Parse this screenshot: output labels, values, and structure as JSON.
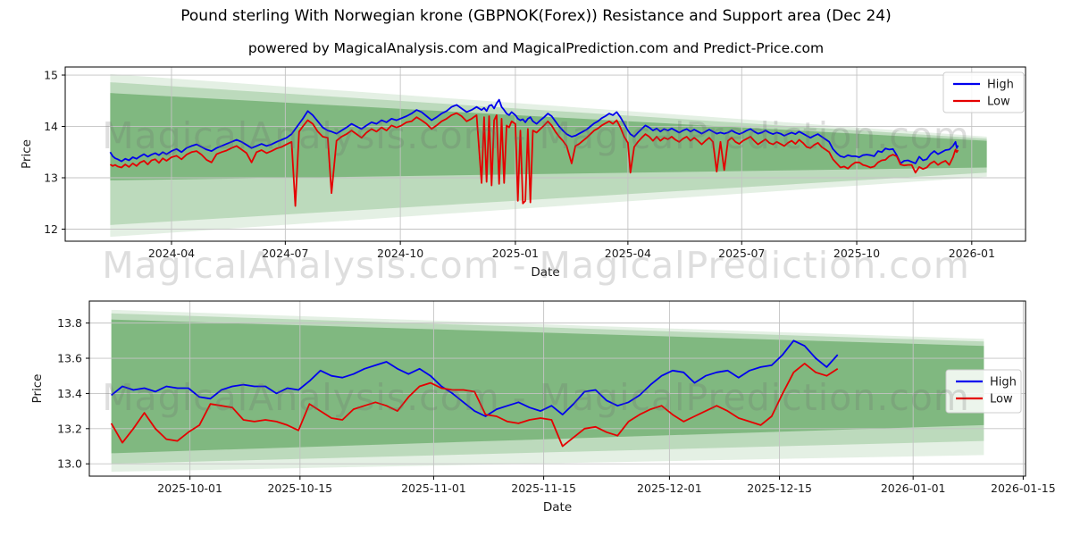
{
  "title": "Pound sterling With Norwegian krone (GBPNOK(Forex)) Resistance and Support area (Dec 24)",
  "subtitle": "powered by MagicalAnalysis.com and MagicalPrediction.com and Predict-Price.com",
  "watermark": {
    "text": "MagicalAnalysis.com - MagicalPrediction.com"
  },
  "colors": {
    "high": "#0000ee",
    "low": "#e50000",
    "band": "#2e8b2e",
    "grid": "#c3c3c3",
    "spine": "#000000",
    "text": "#1a1a1a"
  },
  "chart_data": [
    {
      "type": "line",
      "title": "",
      "xlabel": "Date",
      "ylabel": "Price",
      "x_unit": "days since 2024-01-01",
      "xlim": [
        6,
        774
      ],
      "ylim": [
        11.765,
        15.157
      ],
      "grid": true,
      "legend_position": "upper right",
      "x_ticks": [
        {
          "v": 91,
          "label": "2024-04"
        },
        {
          "v": 182,
          "label": "2024-07"
        },
        {
          "v": 274,
          "label": "2024-10"
        },
        {
          "v": 366,
          "label": "2025-01"
        },
        {
          "v": 456,
          "label": "2025-04"
        },
        {
          "v": 547,
          "label": "2025-07"
        },
        {
          "v": 639,
          "label": "2025-10"
        },
        {
          "v": 731,
          "label": "2026-01"
        }
      ],
      "y_ticks": [
        {
          "v": 12,
          "label": "12"
        },
        {
          "v": 13,
          "label": "13"
        },
        {
          "v": 14,
          "label": "14"
        },
        {
          "v": 15,
          "label": "15"
        }
      ],
      "bands": [
        {
          "x_start": 42,
          "x_end": 743,
          "top_start": 15.02,
          "top_end": 13.8,
          "bottom_start": 11.85,
          "bottom_end": 13.02,
          "opacity": 0.13
        },
        {
          "x_start": 42,
          "x_end": 743,
          "top_start": 14.86,
          "top_end": 13.76,
          "bottom_start": 12.08,
          "bottom_end": 13.1,
          "opacity": 0.22
        },
        {
          "x_start": 42,
          "x_end": 743,
          "top_start": 14.65,
          "top_end": 13.72,
          "bottom_start": 12.95,
          "bottom_end": 13.2,
          "opacity": 0.42
        }
      ],
      "x": [
        42,
        44,
        46,
        48,
        51,
        54,
        57,
        60,
        63,
        66,
        69,
        72,
        75,
        78,
        81,
        84,
        87,
        91,
        95,
        99,
        103,
        107,
        111,
        115,
        119,
        123,
        127,
        131,
        135,
        139,
        143,
        147,
        151,
        155,
        159,
        163,
        167,
        171,
        175,
        179,
        183,
        187,
        190,
        193,
        196,
        200,
        204,
        208,
        212,
        216,
        219,
        223,
        227,
        231,
        235,
        239,
        243,
        247,
        251,
        255,
        259,
        263,
        267,
        271,
        275,
        279,
        283,
        287,
        291,
        295,
        299,
        303,
        307,
        311,
        315,
        319,
        323,
        327,
        331,
        335,
        339,
        341,
        343,
        345,
        347,
        349,
        351,
        353,
        355,
        357,
        359,
        361,
        363,
        366,
        368,
        370,
        372,
        374,
        376,
        378,
        380,
        383,
        386,
        389,
        392,
        395,
        398,
        401,
        404,
        407,
        411,
        414,
        417,
        420,
        423,
        426,
        429,
        432,
        435,
        438,
        441,
        444,
        447,
        450,
        453,
        456,
        458,
        461,
        464,
        467,
        470,
        473,
        476,
        479,
        482,
        485,
        488,
        491,
        494,
        497,
        500,
        503,
        506,
        509,
        512,
        515,
        518,
        521,
        524,
        527,
        530,
        533,
        536,
        539,
        542,
        545,
        548,
        551,
        554,
        557,
        560,
        563,
        566,
        569,
        572,
        575,
        578,
        581,
        584,
        587,
        590,
        593,
        596,
        599,
        602,
        605,
        608,
        611,
        614,
        617,
        620,
        623,
        626,
        629,
        632,
        635,
        638,
        641,
        644,
        647,
        650,
        653,
        656,
        659,
        662,
        665,
        668,
        671,
        674,
        677,
        680,
        683,
        686,
        689,
        692,
        695,
        698,
        701,
        704,
        707,
        710,
        713,
        716,
        718,
        719,
        720
      ],
      "series": [
        {
          "name": "High",
          "color": "#0000ee",
          "values": [
            13.5,
            13.42,
            13.38,
            13.36,
            13.32,
            13.37,
            13.34,
            13.4,
            13.37,
            13.42,
            13.46,
            13.41,
            13.45,
            13.48,
            13.44,
            13.5,
            13.46,
            13.52,
            13.56,
            13.5,
            13.58,
            13.62,
            13.65,
            13.6,
            13.55,
            13.52,
            13.58,
            13.62,
            13.66,
            13.7,
            13.74,
            13.7,
            13.64,
            13.58,
            13.62,
            13.66,
            13.62,
            13.65,
            13.7,
            13.74,
            13.78,
            13.85,
            13.95,
            14.05,
            14.15,
            14.3,
            14.22,
            14.1,
            13.98,
            13.92,
            13.9,
            13.86,
            13.92,
            13.98,
            14.05,
            14.0,
            13.95,
            14.02,
            14.08,
            14.05,
            14.12,
            14.08,
            14.15,
            14.12,
            14.16,
            14.2,
            14.25,
            14.32,
            14.28,
            14.2,
            14.12,
            14.18,
            14.25,
            14.3,
            14.38,
            14.42,
            14.35,
            14.28,
            14.32,
            14.38,
            14.32,
            14.36,
            14.3,
            14.4,
            14.42,
            14.35,
            14.45,
            14.52,
            14.38,
            14.32,
            14.25,
            14.22,
            14.28,
            14.22,
            14.15,
            14.12,
            14.14,
            14.08,
            14.15,
            14.18,
            14.1,
            14.05,
            14.12,
            14.18,
            14.25,
            14.2,
            14.1,
            14.0,
            13.92,
            13.85,
            13.8,
            13.82,
            13.86,
            13.9,
            13.94,
            14.0,
            14.06,
            14.1,
            14.16,
            14.2,
            14.25,
            14.22,
            14.28,
            14.18,
            14.05,
            13.92,
            13.85,
            13.8,
            13.88,
            13.95,
            14.02,
            13.98,
            13.92,
            13.96,
            13.9,
            13.95,
            13.92,
            13.96,
            13.92,
            13.88,
            13.92,
            13.95,
            13.9,
            13.94,
            13.9,
            13.86,
            13.9,
            13.94,
            13.9,
            13.86,
            13.88,
            13.86,
            13.88,
            13.92,
            13.88,
            13.85,
            13.88,
            13.92,
            13.95,
            13.9,
            13.86,
            13.88,
            13.92,
            13.88,
            13.85,
            13.88,
            13.86,
            13.82,
            13.85,
            13.88,
            13.85,
            13.9,
            13.86,
            13.82,
            13.78,
            13.82,
            13.85,
            13.8,
            13.75,
            13.7,
            13.56,
            13.48,
            13.42,
            13.4,
            13.44,
            13.42,
            13.42,
            13.4,
            13.44,
            13.45,
            13.44,
            13.42,
            13.52,
            13.5,
            13.57,
            13.55,
            13.56,
            13.44,
            13.28,
            13.33,
            13.34,
            13.31,
            13.28,
            13.41,
            13.34,
            13.36,
            13.46,
            13.52,
            13.46,
            13.5,
            13.54,
            13.55,
            13.62,
            13.7,
            13.58,
            13.63
          ]
        },
        {
          "name": "Low",
          "color": "#e50000",
          "values": [
            13.26,
            13.23,
            13.25,
            13.22,
            13.2,
            13.26,
            13.21,
            13.28,
            13.23,
            13.3,
            13.33,
            13.26,
            13.34,
            13.36,
            13.29,
            13.38,
            13.33,
            13.4,
            13.43,
            13.36,
            13.45,
            13.5,
            13.52,
            13.45,
            13.35,
            13.3,
            13.46,
            13.5,
            13.53,
            13.58,
            13.62,
            13.55,
            13.48,
            13.3,
            13.5,
            13.54,
            13.48,
            13.52,
            13.57,
            13.6,
            13.65,
            13.7,
            12.45,
            13.9,
            14.0,
            14.12,
            14.05,
            13.9,
            13.8,
            13.78,
            12.7,
            13.72,
            13.8,
            13.85,
            13.92,
            13.85,
            13.78,
            13.88,
            13.95,
            13.9,
            13.98,
            13.92,
            14.02,
            13.98,
            14.02,
            14.08,
            14.1,
            14.18,
            14.12,
            14.05,
            13.95,
            14.02,
            14.1,
            14.15,
            14.22,
            14.26,
            14.2,
            14.1,
            14.15,
            14.22,
            12.9,
            14.18,
            12.92,
            14.2,
            12.85,
            14.12,
            14.22,
            12.88,
            14.15,
            12.9,
            14.02,
            13.98,
            14.1,
            14.05,
            12.55,
            13.92,
            12.5,
            12.55,
            13.95,
            12.52,
            13.92,
            13.88,
            13.95,
            14.02,
            14.1,
            14.02,
            13.9,
            13.8,
            13.72,
            13.62,
            13.28,
            13.62,
            13.66,
            13.72,
            13.78,
            13.85,
            13.92,
            13.96,
            14.02,
            14.06,
            14.1,
            14.05,
            14.12,
            13.98,
            13.8,
            13.68,
            13.1,
            13.6,
            13.7,
            13.78,
            13.85,
            13.8,
            13.72,
            13.8,
            13.72,
            13.78,
            13.75,
            13.8,
            13.74,
            13.7,
            13.76,
            13.8,
            13.72,
            13.78,
            13.72,
            13.65,
            13.72,
            13.78,
            13.7,
            13.12,
            13.7,
            13.15,
            13.72,
            13.78,
            13.7,
            13.66,
            13.72,
            13.76,
            13.8,
            13.72,
            13.65,
            13.7,
            13.75,
            13.68,
            13.65,
            13.7,
            13.66,
            13.62,
            13.68,
            13.72,
            13.66,
            13.74,
            13.68,
            13.6,
            13.58,
            13.64,
            13.68,
            13.6,
            13.55,
            13.5,
            13.36,
            13.28,
            13.2,
            13.22,
            13.18,
            13.25,
            13.3,
            13.3,
            13.25,
            13.23,
            13.2,
            13.22,
            13.3,
            13.34,
            13.35,
            13.42,
            13.45,
            13.42,
            13.26,
            13.24,
            13.25,
            13.25,
            13.1,
            13.21,
            13.17,
            13.2,
            13.28,
            13.32,
            13.25,
            13.3,
            13.33,
            13.25,
            13.4,
            13.55,
            13.5,
            13.54
          ]
        }
      ]
    },
    {
      "type": "line",
      "title": "",
      "xlabel": "Date",
      "ylabel": "Price",
      "x_unit": "days since 2024-01-01",
      "xlim": [
        626.2,
        745.3
      ],
      "ylim": [
        12.93,
        13.925
      ],
      "grid": true,
      "legend_position": "center right",
      "x_ticks": [
        {
          "v": 639,
          "label": "2025-10-01"
        },
        {
          "v": 653,
          "label": "2025-10-15"
        },
        {
          "v": 670,
          "label": "2025-11-01"
        },
        {
          "v": 684,
          "label": "2025-11-15"
        },
        {
          "v": 700,
          "label": "2025-12-01"
        },
        {
          "v": 714,
          "label": "2025-12-15"
        },
        {
          "v": 731,
          "label": "2026-01-01"
        },
        {
          "v": 745,
          "label": "2026-01-15"
        }
      ],
      "y_ticks": [
        {
          "v": 13.0,
          "label": "13.0"
        },
        {
          "v": 13.2,
          "label": "13.2"
        },
        {
          "v": 13.4,
          "label": "13.4"
        },
        {
          "v": 13.6,
          "label": "13.6"
        },
        {
          "v": 13.8,
          "label": "13.8"
        }
      ],
      "bands": [
        {
          "x_start": 629,
          "x_end": 740,
          "top_start": 13.875,
          "top_end": 13.71,
          "bottom_start": 12.955,
          "bottom_end": 13.05,
          "opacity": 0.13
        },
        {
          "x_start": 629,
          "x_end": 740,
          "top_start": 13.855,
          "top_end": 13.695,
          "bottom_start": 13.0,
          "bottom_end": 13.13,
          "opacity": 0.22
        },
        {
          "x_start": 629,
          "x_end": 740,
          "top_start": 13.82,
          "top_end": 13.67,
          "bottom_start": 13.06,
          "bottom_end": 13.22,
          "opacity": 0.42
        }
      ],
      "x": [
        629,
        630.4,
        631.8,
        633.2,
        634.6,
        636,
        637.4,
        638.8,
        640.2,
        641.6,
        643,
        644.4,
        645.8,
        647.2,
        648.6,
        650,
        651.4,
        652.8,
        654.2,
        655.6,
        657,
        658.4,
        659.8,
        661.2,
        662.6,
        664,
        665.4,
        666.8,
        668.2,
        669.6,
        671,
        672.4,
        673.8,
        675.2,
        676.6,
        678,
        679.4,
        680.8,
        682.2,
        683.6,
        685,
        686.4,
        687.8,
        689.2,
        690.6,
        692,
        693.4,
        694.8,
        696.2,
        697.6,
        699,
        700.4,
        701.8,
        703.2,
        704.6,
        706,
        707.4,
        708.8,
        710.2,
        711.6,
        713,
        714.4,
        715.8,
        717.2,
        718.6,
        720,
        721.4
      ],
      "series": [
        {
          "name": "High",
          "color": "#0000ee",
          "values": [
            13.39,
            13.44,
            13.42,
            13.43,
            13.41,
            13.44,
            13.43,
            13.43,
            13.38,
            13.37,
            13.42,
            13.44,
            13.45,
            13.44,
            13.44,
            13.4,
            13.43,
            13.42,
            13.47,
            13.53,
            13.5,
            13.49,
            13.51,
            13.54,
            13.56,
            13.58,
            13.54,
            13.51,
            13.54,
            13.5,
            13.44,
            13.4,
            13.35,
            13.3,
            13.27,
            13.31,
            13.33,
            13.35,
            13.32,
            13.3,
            13.33,
            13.28,
            13.34,
            13.41,
            13.42,
            13.36,
            13.33,
            13.35,
            13.39,
            13.45,
            13.5,
            13.53,
            13.52,
            13.46,
            13.5,
            13.52,
            13.53,
            13.49,
            13.53,
            13.55,
            13.56,
            13.62,
            13.7,
            13.67,
            13.6,
            13.55,
            13.62
          ]
        },
        {
          "name": "Low",
          "color": "#e50000",
          "values": [
            13.23,
            13.12,
            13.2,
            13.29,
            13.2,
            13.14,
            13.13,
            13.18,
            13.22,
            13.34,
            13.33,
            13.32,
            13.25,
            13.24,
            13.25,
            13.24,
            13.22,
            13.19,
            13.34,
            13.3,
            13.26,
            13.25,
            13.31,
            13.33,
            13.35,
            13.33,
            13.3,
            13.38,
            13.44,
            13.46,
            13.43,
            13.42,
            13.42,
            13.41,
            13.28,
            13.27,
            13.24,
            13.23,
            13.25,
            13.26,
            13.25,
            13.1,
            13.15,
            13.2,
            13.21,
            13.18,
            13.16,
            13.24,
            13.28,
            13.31,
            13.33,
            13.28,
            13.24,
            13.27,
            13.3,
            13.33,
            13.3,
            13.26,
            13.24,
            13.22,
            13.27,
            13.4,
            13.52,
            13.57,
            13.52,
            13.5,
            13.54
          ]
        }
      ]
    }
  ]
}
